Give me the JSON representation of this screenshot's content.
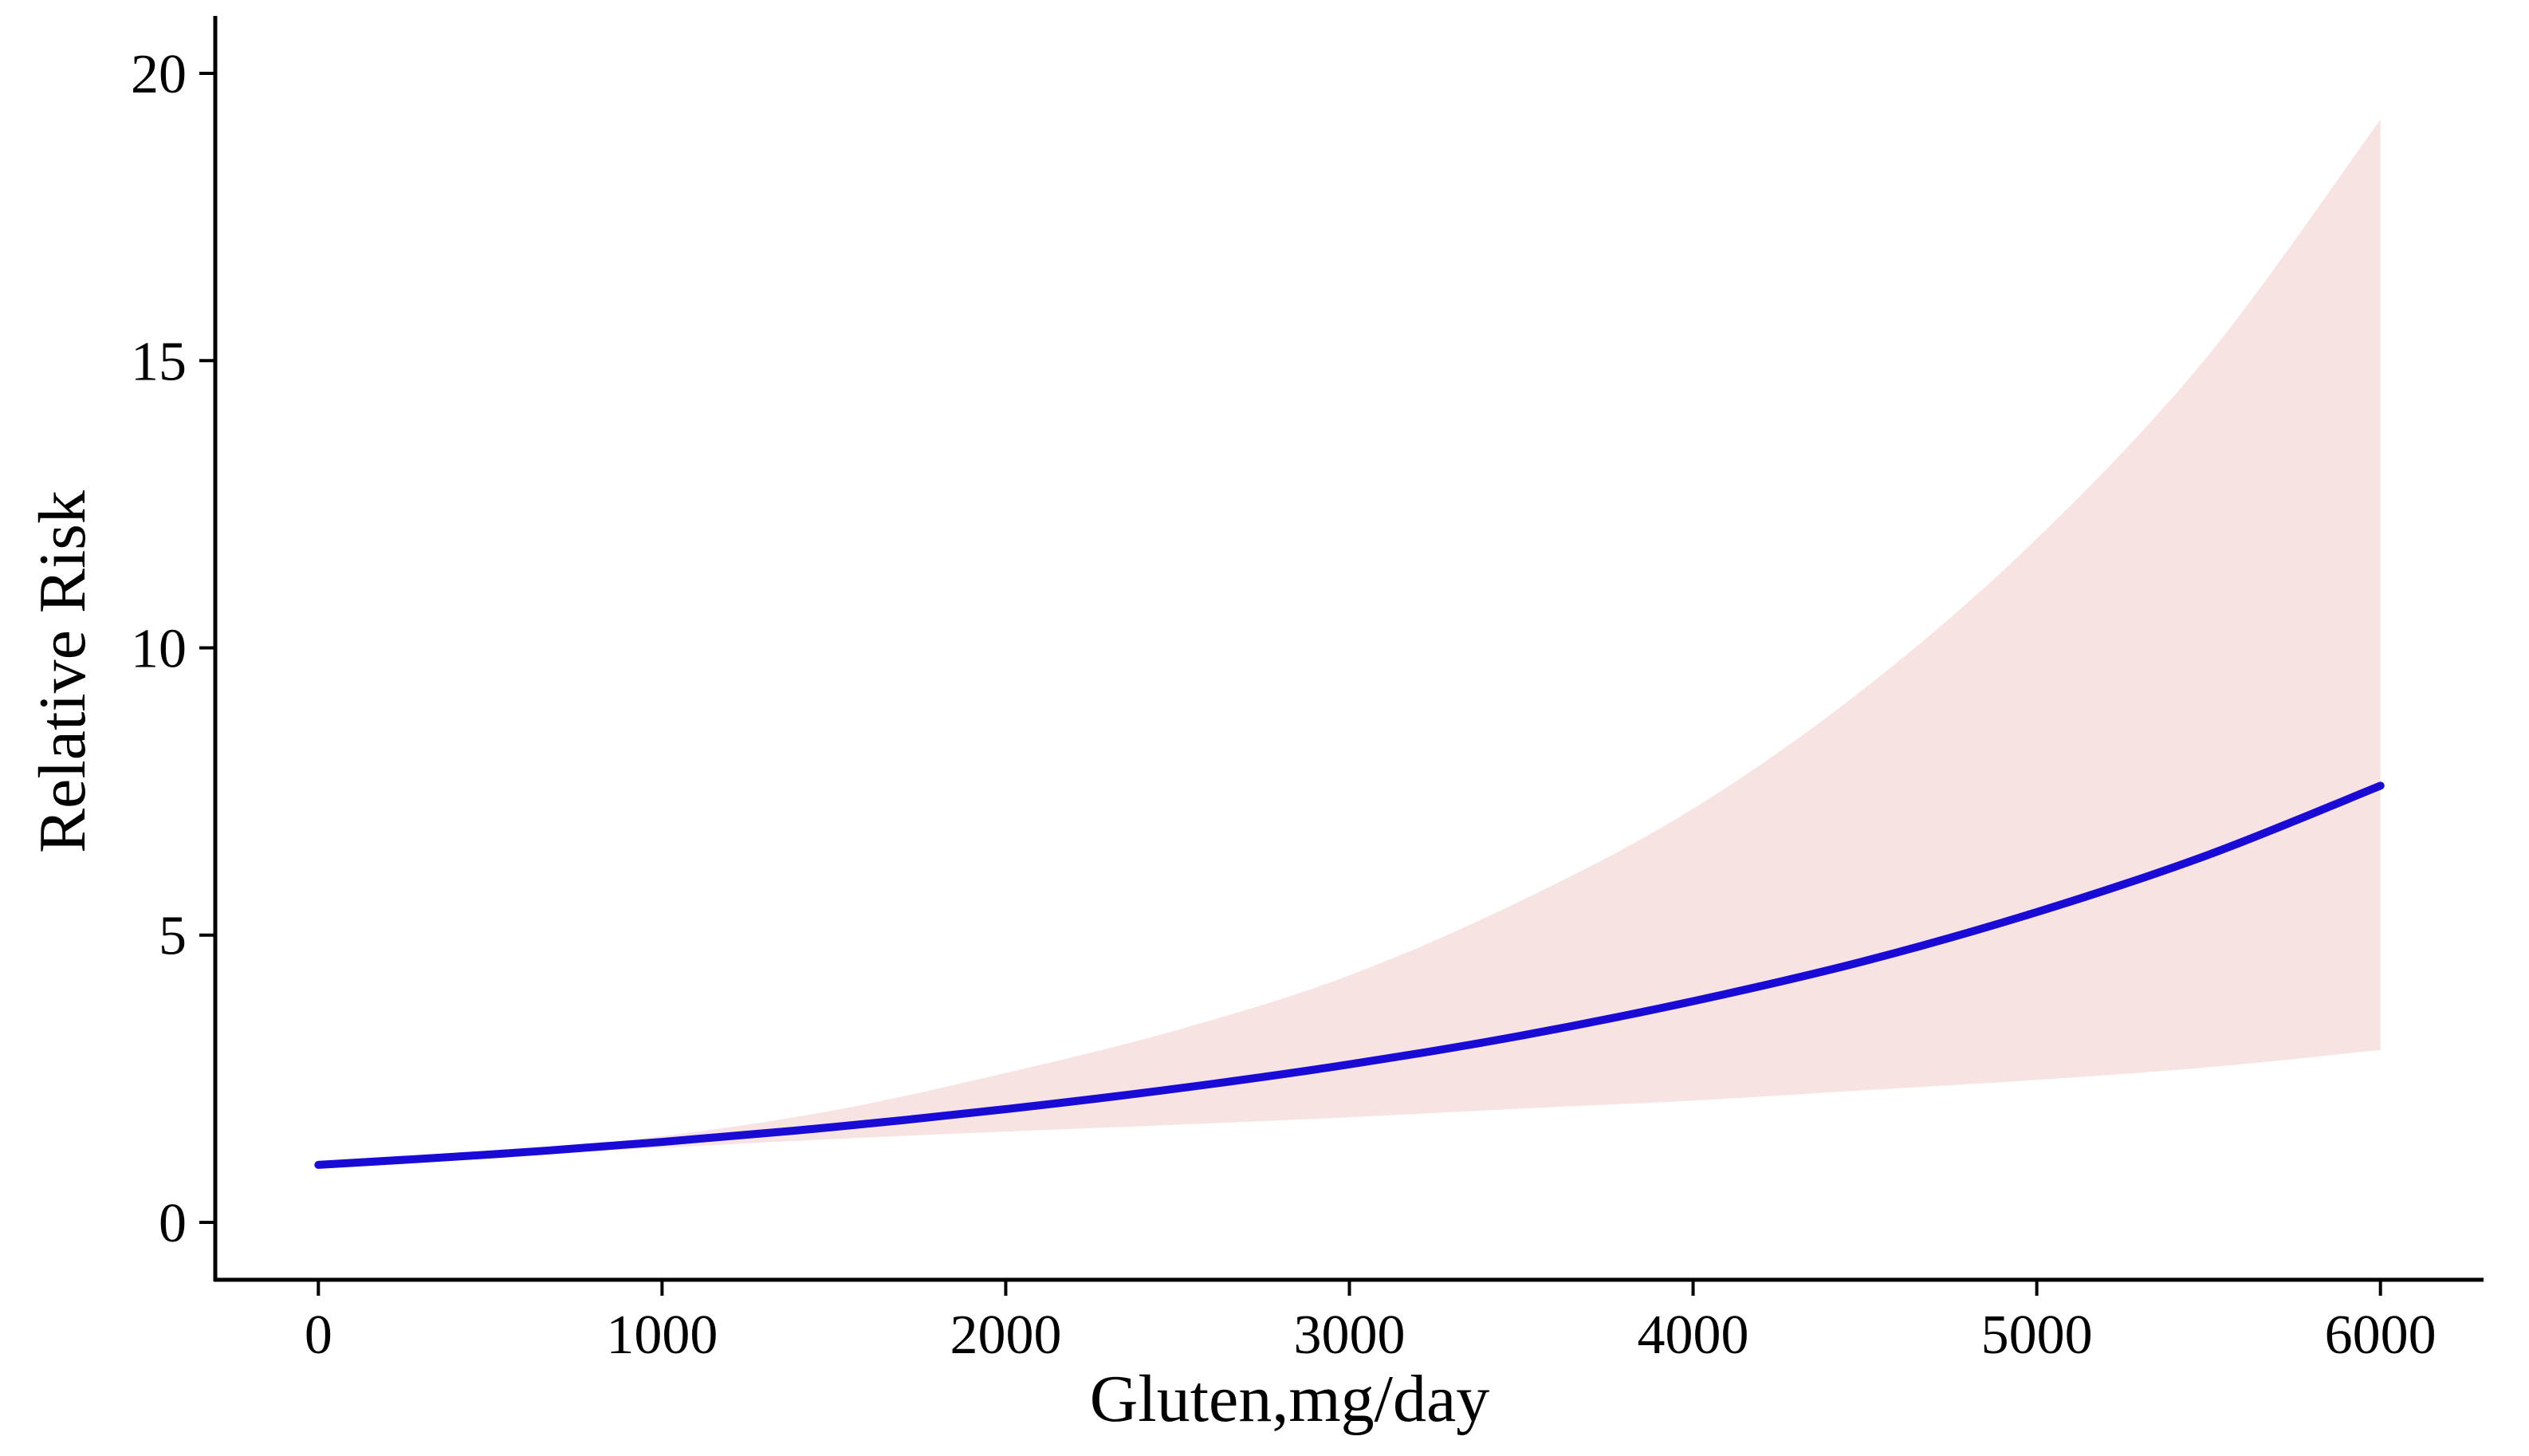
{
  "chart_data": {
    "type": "line",
    "title": "",
    "xlabel": "Gluten,mg/day",
    "ylabel": "Relative Risk",
    "xlim": [
      -300,
      6300
    ],
    "ylim": [
      -1,
      21
    ],
    "x_ticks": [
      0,
      1000,
      2000,
      3000,
      4000,
      5000,
      6000
    ],
    "x_tick_labels": [
      "0",
      "1000",
      "2000",
      "3000",
      "4000",
      "5000",
      "6000"
    ],
    "y_ticks": [
      0,
      5,
      10,
      15,
      20
    ],
    "y_tick_labels": [
      "0",
      "5",
      "10",
      "15",
      "20"
    ],
    "grid": false,
    "legend": "none",
    "colors": {
      "line": "#1a0ad6",
      "ci_band": "#f8e3e3",
      "axis": "#000000"
    },
    "series": [
      {
        "kind": "line",
        "x": [
          0,
          500,
          1000,
          1500,
          2000,
          2500,
          3000,
          3500,
          4000,
          4500,
          5000,
          5500,
          6000
        ],
        "y": [
          1.0,
          1.18,
          1.4,
          1.66,
          1.97,
          2.33,
          2.75,
          3.25,
          3.85,
          4.55,
          5.4,
          6.4,
          7.6
        ]
      },
      {
        "kind": "band",
        "x": [
          0,
          500,
          1000,
          1500,
          2000,
          2500,
          3000,
          3500,
          4000,
          4500,
          5000,
          5500,
          6000
        ],
        "y_lower": [
          1.0,
          1.15,
          1.3,
          1.45,
          1.58,
          1.7,
          1.83,
          1.98,
          2.12,
          2.3,
          2.48,
          2.7,
          3.0
        ],
        "y_upper": [
          1.0,
          1.22,
          1.5,
          1.95,
          2.6,
          3.35,
          4.3,
          5.6,
          7.2,
          9.3,
          11.9,
          15.1,
          19.2
        ]
      }
    ]
  }
}
